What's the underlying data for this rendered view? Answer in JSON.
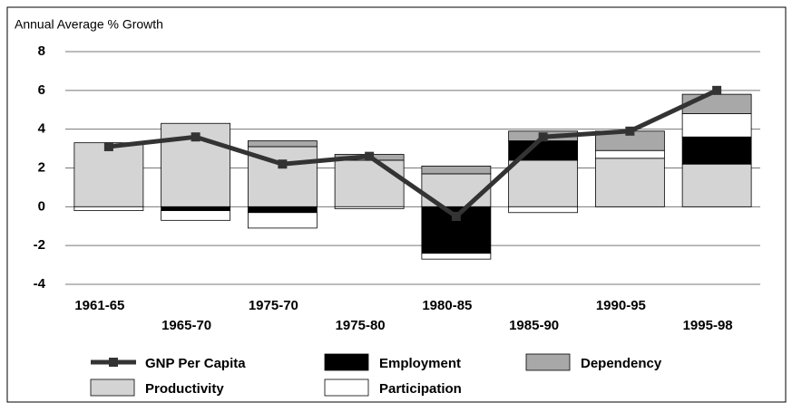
{
  "chart_data": {
    "type": "bar",
    "stacked": true,
    "y_label": "Annual Average % Growth",
    "categories": [
      "1961-65",
      "1965-70",
      "1975-70",
      "1975-80",
      "1980-85",
      "1985-90",
      "1990-95",
      "1995-98"
    ],
    "series": [
      {
        "name": "GNP Per Capita",
        "type": "line",
        "color": "#333333",
        "values": [
          3.1,
          3.6,
          2.2,
          2.6,
          -0.5,
          3.6,
          3.9,
          6.0
        ]
      },
      {
        "name": "Productivity",
        "color": "#d4d4d4",
        "values": [
          3.3,
          4.3,
          3.1,
          2.4,
          1.7,
          2.4,
          2.5,
          2.2
        ]
      },
      {
        "name": "Employment",
        "color": "#000000",
        "values": [
          0,
          -0.2,
          -0.3,
          0,
          -2.4,
          1.0,
          0,
          1.4
        ]
      },
      {
        "name": "Participation",
        "color": "#ffffff",
        "values": [
          -0.2,
          -0.5,
          -0.8,
          -0.1,
          -0.3,
          -0.3,
          0.4,
          1.2
        ]
      },
      {
        "name": "Dependency",
        "color": "#a8a8a8",
        "values": [
          0,
          0,
          0.3,
          0.3,
          0.4,
          0.5,
          1.0,
          1.0
        ]
      }
    ],
    "ylim": [
      -4,
      8
    ],
    "yticks": [
      -4,
      -2,
      0,
      2,
      4,
      6,
      8
    ],
    "grid": true
  }
}
